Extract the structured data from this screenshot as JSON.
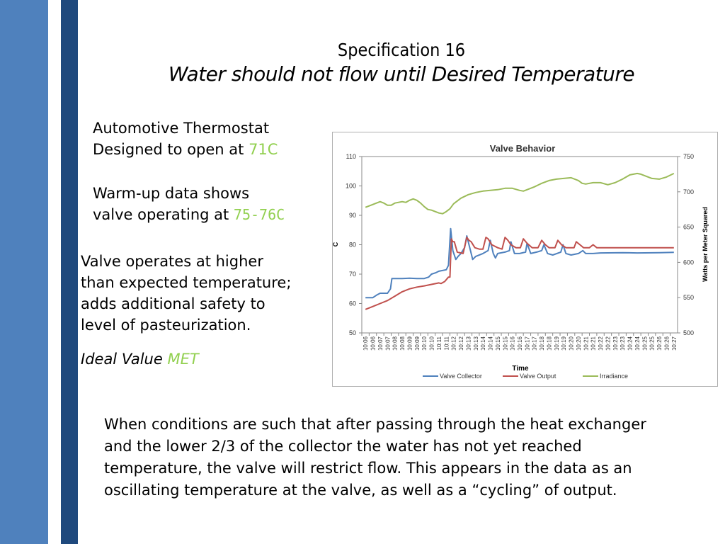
{
  "slide": {
    "title": "Specification 16",
    "subtitle": "Water should not flow until Desired Temperature",
    "bullet1_line1": "Automotive Thermostat",
    "bullet1_line2": "Designed to open at ",
    "bullet1_value": "71C",
    "bullet2_line1": "Warm-up data shows",
    "bullet2_line2": "valve operating at ",
    "bullet2_value": "75-76C",
    "para1": [
      "Valve operates at higher",
      "than expected temperature;",
      "adds additional safety to",
      "level of pasteurization."
    ],
    "ideal_label": "Ideal Value ",
    "ideal_value": "MET",
    "bottom_text": "When conditions are such that after passing through the heat exchanger and the lower 2/3 of the collector the water has not yet reached temperature, the valve will restrict flow.  This appears in the data as an oscillating temperature at the valve, as well as a “cycling” of output.",
    "accent_color": "#92d050"
  },
  "chart_data": {
    "type": "line",
    "title": "Valve Behavior",
    "xlabel": "Time",
    "ylabel": "C",
    "y2label": "Watts per Meter Squared",
    "ylim": [
      50,
      110
    ],
    "y2lim": [
      500,
      750
    ],
    "yticks": [
      50,
      60,
      70,
      80,
      90,
      100,
      110
    ],
    "y2ticks": [
      500,
      550,
      600,
      650,
      700,
      750
    ],
    "categories": [
      "10:06",
      "10:06",
      "10:07",
      "10:07",
      "10:08",
      "10:08",
      "10:09",
      "10:09",
      "10:10",
      "10:10",
      "10:11",
      "10:11",
      "10:12",
      "10:12",
      "10:13",
      "10:13",
      "10:14",
      "10:14",
      "10:15",
      "10:15",
      "10:16",
      "10:16",
      "10:17",
      "10:17",
      "10:18",
      "10:18",
      "10:19",
      "10:19",
      "10:20",
      "10:20",
      "10:21",
      "10:21",
      "10:22",
      "10:22",
      "10:23",
      "10:23",
      "10:24",
      "10:24",
      "10:25",
      "10:25",
      "10:26",
      "10:26",
      "10:27"
    ],
    "legend_position": "bottom",
    "series": [
      {
        "name": "Valve Collector",
        "axis": "left",
        "color": "#4f81bd",
        "points": [
          [
            0,
            62
          ],
          [
            1,
            62
          ],
          [
            1.6,
            63
          ],
          [
            2,
            63.5
          ],
          [
            3,
            63.5
          ],
          [
            3.4,
            65
          ],
          [
            3.6,
            68.5
          ],
          [
            5,
            68.5
          ],
          [
            6,
            68.6
          ],
          [
            7,
            68.5
          ],
          [
            8,
            68.5
          ],
          [
            8.6,
            69
          ],
          [
            9,
            70
          ],
          [
            9.6,
            70.5
          ],
          [
            10,
            71
          ],
          [
            11,
            71.5
          ],
          [
            11.3,
            73
          ],
          [
            11.6,
            85.5
          ],
          [
            11.9,
            78
          ],
          [
            12.3,
            75
          ],
          [
            12.6,
            76
          ],
          [
            13,
            77
          ],
          [
            13.5,
            79
          ],
          [
            13.8,
            83
          ],
          [
            14.3,
            78
          ],
          [
            14.6,
            75
          ],
          [
            15,
            76
          ],
          [
            16,
            77
          ],
          [
            16.7,
            78
          ],
          [
            17,
            81.5
          ],
          [
            17.4,
            77
          ],
          [
            17.7,
            75.5
          ],
          [
            18,
            77
          ],
          [
            19,
            77.5
          ],
          [
            19.6,
            78
          ],
          [
            19.8,
            81
          ],
          [
            20.3,
            77
          ],
          [
            21,
            77
          ],
          [
            21.8,
            77.5
          ],
          [
            22,
            80.5
          ],
          [
            22.5,
            77
          ],
          [
            23.3,
            77.5
          ],
          [
            24,
            78
          ],
          [
            24.3,
            80
          ],
          [
            24.8,
            77
          ],
          [
            25.5,
            76.5
          ],
          [
            26.6,
            77.5
          ],
          [
            26.9,
            80
          ],
          [
            27.3,
            77
          ],
          [
            28,
            76.5
          ],
          [
            29,
            77
          ],
          [
            29.6,
            78
          ],
          [
            30,
            77
          ],
          [
            31,
            77
          ],
          [
            32,
            77.2
          ],
          [
            35,
            77.3
          ],
          [
            37,
            77.2
          ],
          [
            40,
            77.3
          ],
          [
            42,
            77.4
          ]
        ]
      },
      {
        "name": "Valve Output",
        "axis": "left",
        "color": "#c0504d",
        "points": [
          [
            0,
            58
          ],
          [
            1,
            59
          ],
          [
            2,
            60
          ],
          [
            3,
            61
          ],
          [
            4,
            62.5
          ],
          [
            5,
            64
          ],
          [
            6,
            65
          ],
          [
            7,
            65.6
          ],
          [
            8,
            66
          ],
          [
            9,
            66.5
          ],
          [
            10,
            67
          ],
          [
            10.3,
            66.8
          ],
          [
            10.8,
            67.5
          ],
          [
            11.3,
            69
          ],
          [
            11.5,
            69
          ],
          [
            11.7,
            82
          ],
          [
            11.9,
            81
          ],
          [
            12.1,
            81
          ],
          [
            12.5,
            77.5
          ],
          [
            13.3,
            77
          ],
          [
            13.8,
            82.5
          ],
          [
            14.1,
            81.5
          ],
          [
            14.4,
            81
          ],
          [
            14.9,
            79
          ],
          [
            15.5,
            78.5
          ],
          [
            16,
            78.5
          ],
          [
            16.4,
            82.5
          ],
          [
            16.7,
            82
          ],
          [
            17.2,
            80
          ],
          [
            18,
            79
          ],
          [
            18.6,
            78.5
          ],
          [
            19,
            82.5
          ],
          [
            19.4,
            81.5
          ],
          [
            19.8,
            80
          ],
          [
            20.5,
            79
          ],
          [
            21.1,
            79
          ],
          [
            21.5,
            82
          ],
          [
            22,
            80.5
          ],
          [
            22.7,
            79
          ],
          [
            23.5,
            79
          ],
          [
            24,
            81.5
          ],
          [
            24.5,
            80
          ],
          [
            25,
            79
          ],
          [
            25.8,
            79
          ],
          [
            26.2,
            81.5
          ],
          [
            26.7,
            80
          ],
          [
            27.3,
            79
          ],
          [
            28.4,
            79
          ],
          [
            28.7,
            81
          ],
          [
            29.2,
            80
          ],
          [
            29.7,
            79
          ],
          [
            30.5,
            79
          ],
          [
            31,
            80
          ],
          [
            31.5,
            79
          ],
          [
            33,
            79
          ],
          [
            35,
            79
          ],
          [
            37,
            79
          ],
          [
            40,
            79
          ],
          [
            42,
            79
          ]
        ]
      },
      {
        "name": "Irradiance",
        "axis": "right",
        "color": "#9bbb59",
        "points": [
          [
            0,
            678
          ],
          [
            1,
            682
          ],
          [
            1.5,
            684
          ],
          [
            2,
            686
          ],
          [
            2.5,
            684
          ],
          [
            3,
            681
          ],
          [
            3.5,
            681
          ],
          [
            4,
            684
          ],
          [
            5,
            686
          ],
          [
            5.5,
            685
          ],
          [
            6,
            688
          ],
          [
            6.5,
            690
          ],
          [
            7,
            688
          ],
          [
            7.5,
            684
          ],
          [
            8,
            679
          ],
          [
            8.5,
            675
          ],
          [
            9,
            674
          ],
          [
            9.5,
            672
          ],
          [
            10,
            670
          ],
          [
            10.5,
            669
          ],
          [
            11,
            672
          ],
          [
            11.5,
            676
          ],
          [
            12,
            683
          ],
          [
            13,
            691
          ],
          [
            14,
            696
          ],
          [
            15,
            699
          ],
          [
            16,
            701
          ],
          [
            17,
            702
          ],
          [
            18,
            703
          ],
          [
            19,
            705
          ],
          [
            20,
            705
          ],
          [
            21,
            702
          ],
          [
            21.5,
            701
          ],
          [
            22,
            703
          ],
          [
            23,
            707
          ],
          [
            24,
            712
          ],
          [
            25,
            716
          ],
          [
            26,
            718
          ],
          [
            27,
            719
          ],
          [
            28,
            720
          ],
          [
            29,
            716
          ],
          [
            29.5,
            712
          ],
          [
            30,
            711
          ],
          [
            31,
            713
          ],
          [
            32,
            713
          ],
          [
            33,
            710
          ],
          [
            34,
            713
          ],
          [
            35,
            718
          ],
          [
            36,
            724
          ],
          [
            37,
            726
          ],
          [
            37.5,
            725
          ],
          [
            38,
            723
          ],
          [
            39,
            719
          ],
          [
            40,
            718
          ],
          [
            41,
            721
          ],
          [
            42,
            726
          ]
        ]
      }
    ]
  }
}
